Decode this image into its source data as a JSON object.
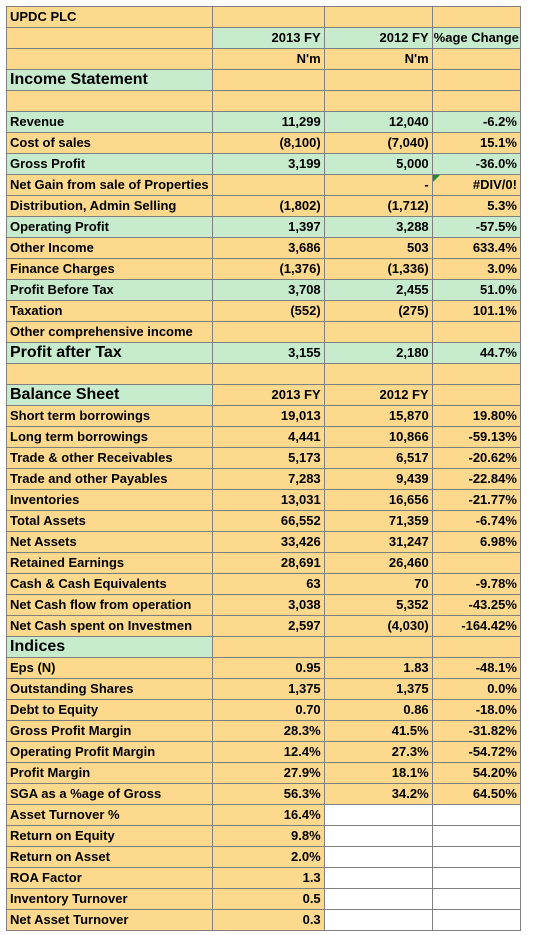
{
  "title": "UPDC PLC",
  "header": {
    "col_2013": "2013 FY",
    "col_2012": "2012 FY",
    "col_change": "%age Change",
    "unit": "N'm"
  },
  "income_title": "Income Statement",
  "income_rows": [
    {
      "label": "Revenue",
      "v2013": "11,299",
      "v2012": "12,040",
      "chg": "-6.2%",
      "style": "green"
    },
    {
      "label": "Cost of sales",
      "v2013": "(8,100)",
      "v2012": "(7,040)",
      "chg": "15.1%",
      "style": "plain"
    },
    {
      "label": "Gross Profit",
      "v2013": "3,199",
      "v2012": "5,000",
      "chg": "-36.0%",
      "style": "green"
    },
    {
      "label": "Net Gain from sale of Properties",
      "v2013": "",
      "v2012": "-",
      "chg": "#DIV/0!",
      "style": "plain",
      "flag": true
    },
    {
      "label": "Distribution, Admin Selling",
      "v2013": "(1,802)",
      "v2012": "(1,712)",
      "chg": "5.3%",
      "style": "plain"
    },
    {
      "label": "Operating Profit",
      "v2013": "1,397",
      "v2012": "3,288",
      "chg": "-57.5%",
      "style": "green"
    },
    {
      "label": "Other Income",
      "v2013": "3,686",
      "v2012": "503",
      "chg": "633.4%",
      "style": "plain"
    },
    {
      "label": "Finance Charges",
      "v2013": "(1,376)",
      "v2012": "(1,336)",
      "chg": "3.0%",
      "style": "plain"
    },
    {
      "label": "Profit Before Tax",
      "v2013": "3,708",
      "v2012": "2,455",
      "chg": "51.0%",
      "style": "green"
    },
    {
      "label": "Taxation",
      "v2013": "(552)",
      "v2012": "(275)",
      "chg": "101.1%",
      "style": "plain"
    },
    {
      "label": "Other comprehensive income",
      "v2013": "",
      "v2012": "",
      "chg": "",
      "style": "plain"
    }
  ],
  "pat": {
    "label": "Profit after Tax",
    "v2013": "3,155",
    "v2012": "2,180",
    "chg": "44.7%"
  },
  "balance_title": "Balance Sheet",
  "balance_rows": [
    {
      "label": "Short term borrowings",
      "v2013": "19,013",
      "v2012": "15,870",
      "chg": "19.80%"
    },
    {
      "label": "Long term borrowings",
      "v2013": "4,441",
      "v2012": "10,866",
      "chg": "-59.13%"
    },
    {
      "label": "Trade & other Receivables",
      "v2013": "5,173",
      "v2012": "6,517",
      "chg": "-20.62%"
    },
    {
      "label": "Trade and other Payables",
      "v2013": "7,283",
      "v2012": "9,439",
      "chg": "-22.84%"
    },
    {
      "label": "Inventories",
      "v2013": "13,031",
      "v2012": "16,656",
      "chg": "-21.77%"
    },
    {
      "label": "Total Assets",
      "v2013": "66,552",
      "v2012": "71,359",
      "chg": "-6.74%"
    },
    {
      "label": "Net Assets",
      "v2013": "33,426",
      "v2012": "31,247",
      "chg": "6.98%"
    },
    {
      "label": "Retained Earnings",
      "v2013": "28,691",
      "v2012": "26,460",
      "chg": ""
    },
    {
      "label": "Cash & Cash Equivalents",
      "v2013": "63",
      "v2012": "70",
      "chg": "-9.78%"
    },
    {
      "label": "Net Cash flow from operation",
      "v2013": "3,038",
      "v2012": "5,352",
      "chg": "-43.25%"
    },
    {
      "label": "Net Cash spent on Investmen",
      "v2013": "2,597",
      "v2012": "(4,030)",
      "chg": "-164.42%"
    }
  ],
  "indices_title": "Indices",
  "indices_rows": [
    {
      "label": "Eps (N)",
      "v2013": "0.95",
      "v2012": "1.83",
      "chg": "-48.1%"
    },
    {
      "label": "Outstanding Shares",
      "v2013": "1,375",
      "v2012": "1,375",
      "chg": "0.0%"
    },
    {
      "label": "Debt to Equity",
      "v2013": "0.70",
      "v2012": "0.86",
      "chg": "-18.0%"
    },
    {
      "label": "Gross Profit Margin",
      "v2013": "28.3%",
      "v2012": "41.5%",
      "chg": "-31.82%"
    },
    {
      "label": "Operating Profit Margin",
      "v2013": "12.4%",
      "v2012": "27.3%",
      "chg": "-54.72%"
    },
    {
      "label": "Profit Margin",
      "v2013": "27.9%",
      "v2012": "18.1%",
      "chg": "54.20%"
    },
    {
      "label": "SGA as a %age of Gross",
      "v2013": "56.3%",
      "v2012": "34.2%",
      "chg": "64.50%"
    },
    {
      "label": "Asset Turnover %",
      "v2013": "16.4%",
      "v2012": "",
      "chg": "",
      "tail": true
    },
    {
      "label": "Return on Equity",
      "v2013": "9.8%",
      "v2012": "",
      "chg": "",
      "tail": true
    },
    {
      "label": "Return on Asset",
      "v2013": "2.0%",
      "v2012": "",
      "chg": "",
      "tail": true
    },
    {
      "label": "ROA Factor",
      "v2013": "1.3",
      "v2012": "",
      "chg": "",
      "tail": true
    },
    {
      "label": "Inventory Turnover",
      "v2013": "0.5",
      "v2012": "",
      "chg": "",
      "tail": true
    },
    {
      "label": "Net Asset Turnover",
      "v2013": "0.3",
      "v2012": "",
      "chg": "",
      "tail": true
    }
  ],
  "colors": {
    "cell_bg": "#fcd98d",
    "green": "#c7ebcd",
    "grid": "#7f7f7f",
    "flag": "#1f8a3b"
  }
}
